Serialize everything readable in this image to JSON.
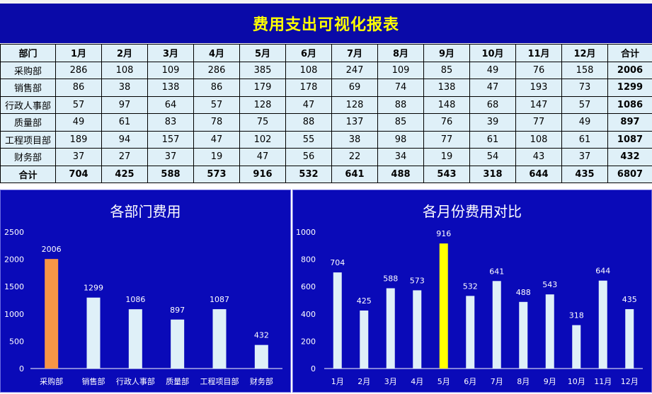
{
  "report": {
    "title": "费用支出可视化报表"
  },
  "table": {
    "header": [
      "部门",
      "1月",
      "2月",
      "3月",
      "4月",
      "5月",
      "6月",
      "7月",
      "8月",
      "9月",
      "10月",
      "11月",
      "12月",
      "合计"
    ],
    "rows": [
      [
        "采购部",
        "286",
        "108",
        "109",
        "286",
        "385",
        "108",
        "247",
        "109",
        "85",
        "49",
        "76",
        "158",
        "2006"
      ],
      [
        "销售部",
        "86",
        "38",
        "138",
        "86",
        "179",
        "178",
        "69",
        "74",
        "138",
        "47",
        "193",
        "73",
        "1299"
      ],
      [
        "行政人事部",
        "57",
        "97",
        "64",
        "57",
        "128",
        "47",
        "128",
        "88",
        "148",
        "68",
        "147",
        "57",
        "1086"
      ],
      [
        "质量部",
        "49",
        "61",
        "83",
        "78",
        "75",
        "88",
        "137",
        "85",
        "76",
        "39",
        "77",
        "49",
        "897"
      ],
      [
        "工程项目部",
        "189",
        "94",
        "157",
        "47",
        "102",
        "55",
        "38",
        "98",
        "77",
        "61",
        "108",
        "61",
        "1087"
      ],
      [
        "财务部",
        "37",
        "27",
        "37",
        "19",
        "47",
        "56",
        "22",
        "34",
        "19",
        "54",
        "43",
        "37",
        "432"
      ]
    ],
    "total": [
      "合计",
      "704",
      "425",
      "588",
      "573",
      "916",
      "532",
      "641",
      "488",
      "543",
      "318",
      "644",
      "435",
      "6807"
    ]
  },
  "chart_data": [
    {
      "type": "bar",
      "title": "各部门费用",
      "categories": [
        "采购部",
        "销售部",
        "行政人事部",
        "质量部",
        "工程项目部",
        "财务部"
      ],
      "values": [
        2006,
        1299,
        1086,
        897,
        1087,
        432
      ],
      "ylim": [
        0,
        2500
      ],
      "yticks": [
        0,
        500,
        1000,
        1500,
        2000,
        2500
      ],
      "bar_color": "#dff0f8",
      "highlight_index": 0,
      "highlight_color": "#f79646",
      "label_color": "#ffffff"
    },
    {
      "type": "bar",
      "title": "各月份费用对比",
      "categories": [
        "1月",
        "2月",
        "3月",
        "4月",
        "5月",
        "6月",
        "7月",
        "8月",
        "9月",
        "10月",
        "11月",
        "12月"
      ],
      "values": [
        704,
        425,
        588,
        573,
        916,
        532,
        641,
        488,
        543,
        318,
        644,
        435
      ],
      "ylim": [
        0,
        1000
      ],
      "yticks": [
        0,
        200,
        400,
        600,
        800,
        1000
      ],
      "bar_color": "#dff0f8",
      "highlight_index": 4,
      "highlight_color": "#ffff00",
      "label_color": "#ffffff"
    }
  ]
}
